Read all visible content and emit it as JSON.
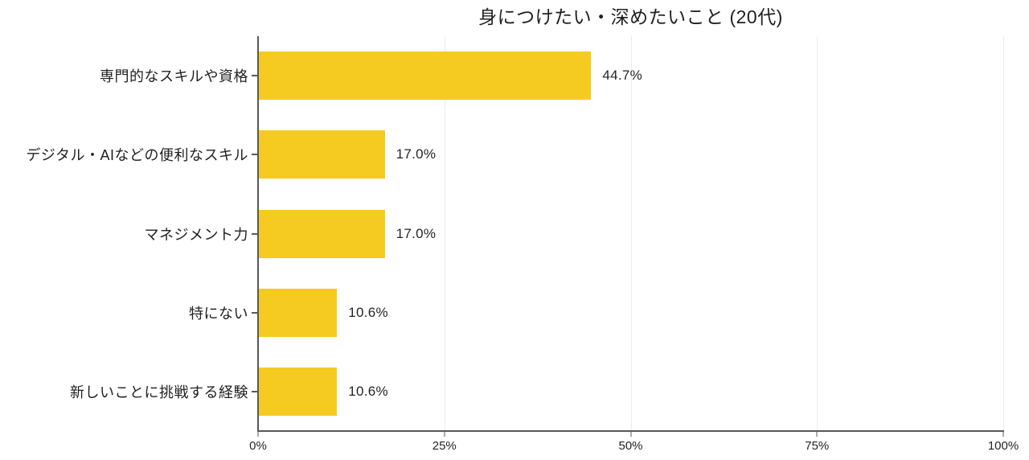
{
  "chart_data": {
    "type": "bar",
    "orientation": "horizontal",
    "title": "身につけたい・深めたいこと (20代)",
    "categories": [
      "専門的なスキルや資格",
      "デジタル・AIなどの便利なスキル",
      "マネジメント力",
      "特にない",
      "新しいことに挑戦する経験"
    ],
    "values": [
      44.7,
      17.0,
      17.0,
      10.6,
      10.6
    ],
    "value_labels": [
      "44.7%",
      "17.0%",
      "17.0%",
      "10.6%",
      "10.6%"
    ],
    "x_ticks": [
      0,
      25,
      50,
      75,
      100
    ],
    "x_tick_labels": [
      "0%",
      "25%",
      "50%",
      "75%",
      "100%"
    ],
    "xlim": [
      0,
      100
    ],
    "xlabel": "",
    "ylabel": "",
    "legend": "none",
    "grid": "vertical-light",
    "colors": {
      "bar": "#F6CB21",
      "axis": "#595959",
      "gridline": "#EBEBEB",
      "text": "#212121",
      "background": "#FFFFFF"
    }
  }
}
